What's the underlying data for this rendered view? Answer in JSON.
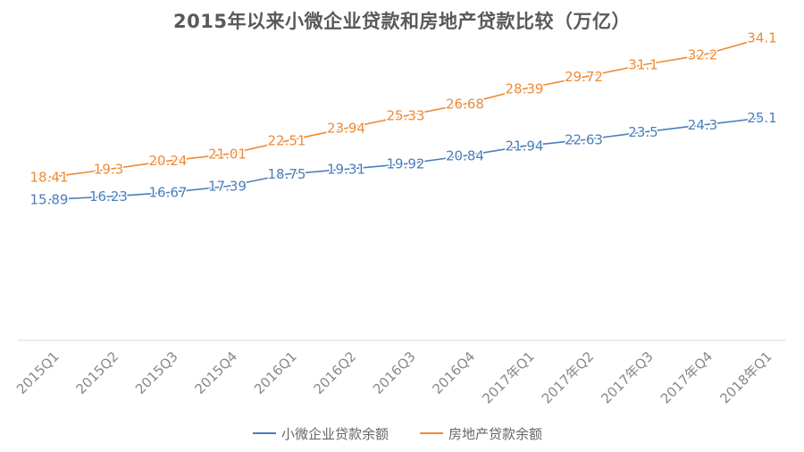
{
  "chart_data": {
    "type": "line",
    "title": "2015年以来小微企业贷款和房地产贷款比较（万亿）",
    "categories": [
      "2015Q1",
      "2015Q2",
      "2015Q3",
      "2015Q4",
      "2016Q1",
      "2016Q2",
      "2016Q3",
      "2016Q4",
      "2017年Q1",
      "2017年Q2",
      "2017年Q3",
      "2017年Q4",
      "2018年Q1"
    ],
    "series": [
      {
        "name": "小微企业贷款余额",
        "color": "#4a7ebb",
        "values": [
          15.89,
          16.23,
          16.67,
          17.39,
          18.75,
          19.31,
          19.92,
          20.84,
          21.94,
          22.63,
          23.5,
          24.3,
          25.1
        ],
        "labels": [
          "15.89",
          "16.23",
          "16.67",
          "17.39",
          "18.75",
          "19.31",
          "19.92",
          "20.84",
          "21.94",
          "22.63",
          "23.5",
          "24.3",
          "25.1"
        ]
      },
      {
        "name": "房地产贷款余额",
        "color": "#ed8a36",
        "values": [
          18.41,
          19.3,
          20.24,
          21.01,
          22.51,
          23.94,
          25.33,
          26.68,
          28.39,
          29.72,
          31.1,
          32.2,
          34.1
        ],
        "labels": [
          "18.41",
          "19.3",
          "20.24",
          "21.01",
          "22.51",
          "23.94",
          "25.33",
          "26.68",
          "28.39",
          "29.72",
          "31.1",
          "32.2",
          "34.1"
        ]
      }
    ],
    "xlabel": "",
    "ylabel": "",
    "ylim": [
      0,
      38
    ],
    "grid": false,
    "legend_position": "bottom"
  }
}
